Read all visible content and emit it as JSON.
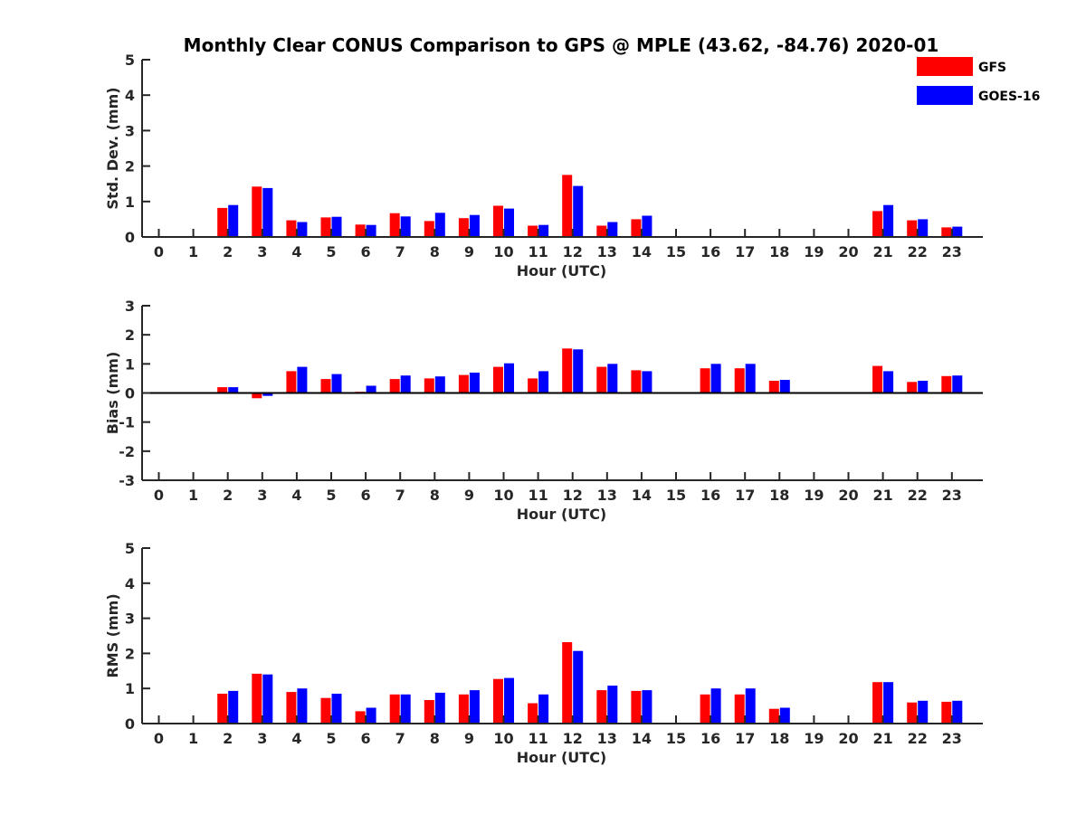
{
  "figure_title": "Monthly Clear CONUS Comparison to GPS @ MPLE (43.62, -84.76) 2020-01",
  "legend": [
    {
      "label": "GFS",
      "color": "#ff0000"
    },
    {
      "label": "GOES-16",
      "color": "#0000ff"
    }
  ],
  "chart_data": [
    {
      "type": "bar",
      "title": "Monthly Clear CONUS Comparison to GPS @ MPLE (43.62, -84.76) 2020-01",
      "xlabel": "Hour (UTC)",
      "ylabel": "Std. Dev. (mm)",
      "ylim": [
        0,
        5
      ],
      "yticks": [
        0,
        1,
        2,
        3,
        4,
        5
      ],
      "categories": [
        "0",
        "1",
        "2",
        "3",
        "4",
        "5",
        "6",
        "7",
        "8",
        "9",
        "10",
        "11",
        "12",
        "13",
        "14",
        "15",
        "16",
        "17",
        "18",
        "19",
        "20",
        "21",
        "22",
        "23"
      ],
      "series": [
        {
          "name": "GFS",
          "color": "#ff0000",
          "values": [
            null,
            null,
            0.82,
            1.42,
            0.47,
            0.55,
            0.35,
            0.67,
            0.45,
            0.53,
            0.88,
            0.32,
            1.75,
            0.32,
            0.5,
            null,
            null,
            null,
            null,
            null,
            null,
            0.73,
            0.47,
            0.27
          ]
        },
        {
          "name": "GOES-16",
          "color": "#0000ff",
          "values": [
            null,
            null,
            0.9,
            1.38,
            0.42,
            0.57,
            0.34,
            0.58,
            0.68,
            0.62,
            0.8,
            0.34,
            1.44,
            0.42,
            0.6,
            null,
            null,
            null,
            null,
            null,
            null,
            0.9,
            0.5,
            0.29
          ]
        }
      ]
    },
    {
      "type": "bar",
      "title": "",
      "xlabel": "Hour (UTC)",
      "ylabel": "Bias (mm)",
      "ylim": [
        -3,
        3
      ],
      "yticks": [
        -3,
        -2,
        -1,
        0,
        1,
        2,
        3
      ],
      "categories": [
        "0",
        "1",
        "2",
        "3",
        "4",
        "5",
        "6",
        "7",
        "8",
        "9",
        "10",
        "11",
        "12",
        "13",
        "14",
        "15",
        "16",
        "17",
        "18",
        "19",
        "20",
        "21",
        "22",
        "23"
      ],
      "series": [
        {
          "name": "GFS",
          "color": "#ff0000",
          "values": [
            null,
            null,
            0.2,
            -0.18,
            0.75,
            0.48,
            0.04,
            0.48,
            0.5,
            0.62,
            0.9,
            0.5,
            1.53,
            0.9,
            0.78,
            null,
            0.85,
            0.85,
            0.42,
            null,
            null,
            0.93,
            0.38,
            0.58
          ]
        },
        {
          "name": "GOES-16",
          "color": "#0000ff",
          "values": [
            null,
            null,
            0.2,
            -0.1,
            0.9,
            0.65,
            0.25,
            0.6,
            0.57,
            0.7,
            1.02,
            0.75,
            1.5,
            1.0,
            0.75,
            null,
            1.0,
            1.0,
            0.45,
            null,
            null,
            0.75,
            0.42,
            0.6
          ]
        }
      ]
    },
    {
      "type": "bar",
      "title": "",
      "xlabel": "Hour (UTC)",
      "ylabel": "RMS (mm)",
      "ylim": [
        0,
        5
      ],
      "yticks": [
        0,
        1,
        2,
        3,
        4,
        5
      ],
      "categories": [
        "0",
        "1",
        "2",
        "3",
        "4",
        "5",
        "6",
        "7",
        "8",
        "9",
        "10",
        "11",
        "12",
        "13",
        "14",
        "15",
        "16",
        "17",
        "18",
        "19",
        "20",
        "21",
        "22",
        "23"
      ],
      "series": [
        {
          "name": "GFS",
          "color": "#ff0000",
          "values": [
            null,
            null,
            0.85,
            1.42,
            0.9,
            0.73,
            0.35,
            0.83,
            0.67,
            0.83,
            1.27,
            0.58,
            2.32,
            0.95,
            0.93,
            null,
            0.83,
            0.83,
            0.42,
            null,
            null,
            1.18,
            0.6,
            0.62
          ]
        },
        {
          "name": "GOES-16",
          "color": "#0000ff",
          "values": [
            null,
            null,
            0.93,
            1.4,
            1.0,
            0.85,
            0.45,
            0.83,
            0.88,
            0.95,
            1.3,
            0.83,
            2.07,
            1.08,
            0.95,
            null,
            1.0,
            1.0,
            0.45,
            null,
            null,
            1.18,
            0.65,
            0.65
          ]
        }
      ]
    }
  ]
}
